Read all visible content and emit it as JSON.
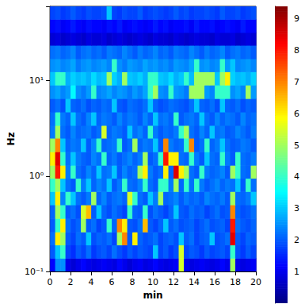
{
  "chart_data": {
    "type": "heatmap",
    "xlabel": "min",
    "ylabel": "Hz",
    "log": "y",
    "xlim": [
      0,
      20
    ],
    "xticks": [
      0,
      2,
      4,
      6,
      8,
      10,
      12,
      14,
      16,
      18,
      20
    ],
    "ylim": [
      0.1,
      60
    ],
    "yticks": [
      {
        "value": 0.1,
        "label": "10⁻¹"
      },
      {
        "value": 1,
        "label": "10⁰"
      },
      {
        "value": 10,
        "label": "10¹"
      }
    ],
    "colorbar_lim": [
      0,
      9.4
    ],
    "colorbar_ticks": [
      1,
      2,
      3,
      4,
      5,
      6,
      7,
      8,
      9
    ],
    "x_edges": [
      0,
      0.5,
      1,
      1.5,
      2,
      2.5,
      3,
      3.5,
      4,
      4.5,
      5,
      5.5,
      6,
      6.5,
      7,
      7.5,
      8,
      8.5,
      9,
      9.5,
      10,
      10.5,
      11,
      11.5,
      12,
      12.5,
      13,
      13.5,
      14,
      14.5,
      15,
      15.5,
      16,
      16.5,
      17,
      17.5,
      18,
      18.5,
      19,
      19.5,
      20
    ],
    "y_edges": [
      0.1,
      0.138,
      0.19,
      0.26,
      0.36,
      0.5,
      0.69,
      0.95,
      1.3,
      1.8,
      2.5,
      3.4,
      4.7,
      6.5,
      9,
      12.4,
      17,
      23.5,
      32,
      44,
      60
    ],
    "z": [
      [
        1.2,
        2.5,
        2.5,
        1.0,
        0.8,
        1.0,
        1.2,
        1.0,
        0.9,
        1.0,
        1.1,
        1.0,
        0.9,
        1.2,
        1.0,
        0.8,
        1.0,
        1.1,
        0.9,
        1.0,
        1.2,
        1.0,
        0.9,
        1.0,
        1.1,
        5.5,
        1.0,
        0.9,
        1.0,
        1.1,
        1.0,
        0.9,
        1.0,
        1.2,
        1.0,
        5.0,
        1.0,
        0.9,
        1.0,
        1.1
      ],
      [
        2.0,
        3.0,
        4.0,
        1.8,
        1.6,
        2.0,
        1.8,
        2.2,
        1.7,
        1.9,
        2.0,
        1.8,
        2.2,
        1.9,
        1.7,
        2.0,
        1.8,
        2.0,
        1.9,
        1.8,
        3.0,
        1.8,
        2.0,
        1.7,
        1.9,
        5.5,
        1.8,
        2.0,
        1.9,
        1.7,
        2.0,
        1.8,
        1.9,
        2.0,
        1.8,
        4.0,
        1.9,
        1.7,
        2.0,
        1.8
      ],
      [
        2.2,
        6.0,
        5.0,
        2.0,
        1.8,
        2.2,
        2.0,
        3.0,
        1.9,
        2.1,
        2.0,
        2.2,
        1.8,
        5.0,
        7.0,
        2.0,
        6.0,
        2.1,
        1.9,
        2.0,
        2.2,
        1.8,
        2.0,
        2.1,
        1.9,
        3.0,
        2.0,
        2.2,
        1.8,
        2.0,
        2.1,
        3.0,
        1.9,
        2.0,
        2.2,
        8.5,
        2.0,
        1.8,
        2.1,
        2.0
      ],
      [
        2.0,
        4.0,
        6.0,
        2.2,
        1.9,
        2.1,
        5.0,
        2.0,
        2.2,
        1.8,
        2.0,
        4.0,
        2.1,
        7.0,
        6.0,
        2.0,
        1.9,
        2.2,
        6.5,
        2.0,
        1.8,
        2.1,
        3.0,
        2.0,
        2.2,
        1.9,
        2.0,
        2.1,
        1.8,
        2.0,
        2.2,
        1.9,
        2.0,
        2.1,
        1.8,
        8.0,
        2.2,
        2.0,
        1.9,
        2.1
      ],
      [
        2.1,
        5.0,
        4.0,
        2.0,
        2.2,
        1.9,
        5.5,
        6.5,
        2.0,
        3.0,
        2.1,
        1.9,
        2.2,
        2.0,
        1.8,
        4.0,
        2.1,
        2.0,
        4.0,
        1.9,
        2.2,
        2.0,
        1.8,
        2.1,
        3.0,
        2.0,
        1.9,
        2.2,
        2.0,
        2.1,
        1.8,
        2.0,
        2.2,
        1.9,
        2.0,
        7.0,
        2.1,
        1.9,
        2.0,
        2.2
      ],
      [
        3.0,
        6.0,
        2.4,
        4.0,
        3.0,
        2.2,
        2.0,
        2.3,
        5.0,
        2.1,
        2.4,
        2.0,
        2.2,
        2.3,
        2.1,
        5.5,
        4.0,
        2.2,
        2.0,
        3.0,
        2.3,
        5.0,
        2.1,
        2.2,
        2.4,
        2.0,
        2.3,
        2.1,
        2.2,
        2.0,
        2.4,
        2.2,
        2.1,
        2.3,
        2.0,
        5.0,
        2.2,
        2.1,
        2.3,
        3.0
      ],
      [
        4.0,
        5.0,
        3.0,
        2.2,
        2.0,
        4.0,
        2.3,
        3.0,
        2.1,
        2.4,
        2.2,
        3.0,
        2.0,
        2.3,
        4.0,
        2.2,
        2.1,
        2.4,
        4.0,
        2.2,
        2.0,
        4.0,
        4.0,
        2.3,
        5.0,
        2.1,
        4.0,
        2.2,
        4.0,
        2.3,
        2.0,
        2.2,
        2.4,
        2.1,
        2.3,
        2.2,
        3.0,
        2.0,
        4.0,
        2.2
      ],
      [
        5.0,
        8.0,
        6.0,
        2.3,
        4.0,
        2.2,
        2.0,
        2.4,
        2.1,
        3.0,
        2.2,
        2.3,
        3.0,
        2.0,
        2.4,
        2.1,
        2.2,
        5.0,
        6.0,
        2.3,
        2.0,
        2.2,
        6.0,
        2.1,
        8.5,
        6.0,
        5.0,
        2.2,
        2.0,
        4.0,
        2.3,
        2.1,
        2.2,
        2.4,
        2.0,
        5.0,
        4.0,
        2.2,
        2.1,
        5.0
      ],
      [
        6.0,
        8.5,
        4.0,
        2.2,
        3.0,
        2.3,
        2.1,
        2.0,
        2.4,
        2.2,
        4.0,
        2.1,
        2.3,
        2.0,
        2.2,
        2.4,
        2.1,
        2.3,
        5.0,
        2.0,
        2.2,
        4.0,
        8.0,
        6.0,
        6.0,
        2.2,
        2.1,
        4.0,
        2.3,
        2.0,
        3.0,
        2.2,
        2.1,
        4.0,
        2.3,
        2.0,
        4.0,
        2.2,
        2.1,
        2.3
      ],
      [
        5.0,
        7.0,
        3.0,
        2.1,
        2.3,
        2.2,
        3.0,
        2.0,
        2.4,
        4.0,
        2.1,
        2.2,
        2.3,
        4.0,
        2.0,
        2.2,
        5.0,
        2.1,
        2.3,
        2.2,
        3.0,
        2.0,
        7.0,
        2.3,
        2.1,
        2.2,
        4.0,
        7.0,
        2.0,
        2.2,
        4.0,
        2.1,
        2.3,
        3.0,
        2.2,
        2.0,
        2.1,
        2.3,
        2.2,
        2.0
      ],
      [
        2.3,
        5.0,
        2.2,
        2.0,
        2.4,
        2.1,
        2.2,
        2.3,
        2.0,
        2.2,
        5.5,
        2.1,
        2.3,
        2.2,
        2.0,
        3.0,
        2.2,
        2.4,
        2.1,
        4.0,
        2.3,
        2.0,
        2.2,
        2.1,
        2.3,
        4.0,
        5.0,
        2.2,
        2.0,
        2.4,
        2.1,
        3.0,
        2.2,
        2.3,
        2.0,
        2.1,
        2.4,
        2.2,
        2.0,
        2.3
      ],
      [
        2.2,
        4.0,
        2.3,
        2.1,
        3.0,
        2.2,
        2.0,
        2.4,
        3.0,
        2.1,
        2.3,
        2.2,
        2.0,
        2.4,
        2.1,
        2.3,
        2.2,
        2.0,
        2.4,
        2.1,
        3.0,
        2.2,
        2.3,
        2.1,
        4.0,
        2.0,
        2.2,
        2.3,
        2.1,
        3.0,
        2.2,
        2.0,
        2.4,
        2.1,
        2.3,
        2.2,
        2.0,
        2.4,
        2.1,
        2.2
      ],
      [
        2.0,
        2.2,
        1.9,
        3.0,
        2.1,
        2.0,
        2.2,
        1.9,
        2.1,
        2.0,
        2.2,
        2.1,
        3.0,
        2.0,
        1.9,
        2.2,
        2.1,
        2.0,
        2.2,
        3.0,
        2.1,
        1.9,
        2.0,
        2.2,
        2.1,
        2.0,
        1.9,
        2.2,
        3.0,
        2.1,
        2.0,
        2.2,
        1.9,
        3.0,
        2.1,
        2.0,
        2.2,
        1.9,
        2.1,
        2.0
      ],
      [
        2.5,
        2.7,
        2.4,
        2.6,
        3.5,
        2.5,
        2.3,
        2.6,
        4.0,
        2.4,
        2.5,
        2.7,
        2.4,
        2.6,
        2.5,
        2.3,
        2.6,
        2.4,
        2.7,
        4.0,
        5.0,
        2.5,
        2.4,
        4.0,
        2.6,
        2.5,
        2.3,
        5.0,
        5.0,
        5.0,
        2.6,
        2.4,
        4.0,
        4.0,
        4.0,
        2.5,
        2.7,
        2.4,
        5.0,
        2.6
      ],
      [
        3.0,
        4.0,
        4.0,
        2.8,
        3.1,
        2.9,
        3.0,
        2.8,
        3.2,
        2.9,
        3.0,
        5.0,
        3.1,
        2.8,
        5.0,
        3.0,
        2.9,
        3.1,
        2.8,
        4.0,
        4.0,
        3.0,
        2.9,
        3.2,
        2.8,
        3.0,
        4.0,
        2.9,
        5.0,
        5.0,
        5.0,
        5.0,
        3.0,
        5.0,
        6.0,
        3.1,
        2.9,
        3.0,
        2.8,
        3.1
      ],
      [
        2.5,
        2.6,
        2.4,
        2.5,
        2.7,
        2.3,
        2.5,
        2.6,
        2.4,
        2.5,
        2.6,
        2.4,
        4.0,
        2.5,
        2.3,
        2.6,
        2.5,
        2.4,
        2.7,
        2.5,
        2.6,
        2.4,
        2.5,
        2.3,
        2.6,
        2.5,
        2.4,
        2.7,
        4.0,
        2.5,
        2.6,
        2.4,
        2.5,
        4.0,
        2.6,
        3.0,
        2.4,
        2.5,
        2.6,
        2.4
      ],
      [
        2.2,
        2.3,
        2.1,
        2.2,
        2.4,
        2.0,
        2.2,
        2.3,
        2.1,
        2.2,
        2.0,
        2.3,
        2.2,
        2.1,
        2.4,
        2.2,
        2.0,
        2.3,
        2.1,
        2.2,
        2.4,
        2.1,
        2.2,
        2.0,
        2.3,
        2.2,
        2.1,
        2.4,
        2.2,
        2.0,
        2.3,
        2.1,
        2.2,
        2.4,
        2.0,
        2.2,
        2.3,
        2.1,
        2.2,
        2.0
      ],
      [
        0.8,
        0.9,
        0.7,
        0.8,
        0.9,
        0.8,
        0.7,
        0.9,
        0.8,
        0.8,
        0.9,
        0.7,
        0.8,
        0.9,
        0.8,
        0.7,
        0.8,
        0.9,
        0.8,
        0.7,
        0.9,
        0.8,
        0.8,
        0.7,
        0.9,
        0.8,
        0.7,
        0.8,
        0.9,
        0.8,
        0.8,
        0.7,
        0.9,
        0.8,
        0.8,
        0.9,
        0.7,
        0.8,
        0.9,
        0.8
      ],
      [
        1.2,
        1.3,
        1.1,
        1.2,
        1.4,
        1.2,
        1.1,
        1.3,
        1.2,
        1.2,
        1.1,
        1.3,
        1.2,
        1.4,
        1.1,
        1.2,
        1.3,
        1.2,
        1.1,
        1.2,
        1.4,
        1.2,
        1.3,
        1.1,
        1.2,
        1.2,
        1.3,
        1.1,
        1.4,
        1.2,
        1.2,
        1.3,
        1.1,
        1.2,
        1.3,
        1.2,
        1.1,
        1.4,
        1.2,
        1.2
      ],
      [
        1.8,
        1.9,
        1.7,
        1.8,
        2.0,
        1.8,
        1.7,
        1.9,
        1.8,
        1.8,
        1.9,
        3.0,
        1.8,
        1.7,
        1.9,
        1.8,
        1.8,
        2.0,
        1.7,
        1.8,
        1.9,
        1.8,
        1.7,
        1.8,
        2.0,
        1.8,
        1.9,
        1.7,
        1.8,
        1.8,
        1.9,
        1.8,
        1.7,
        2.0,
        1.8,
        1.8,
        1.9,
        1.7,
        1.8,
        1.9
      ]
    ]
  }
}
